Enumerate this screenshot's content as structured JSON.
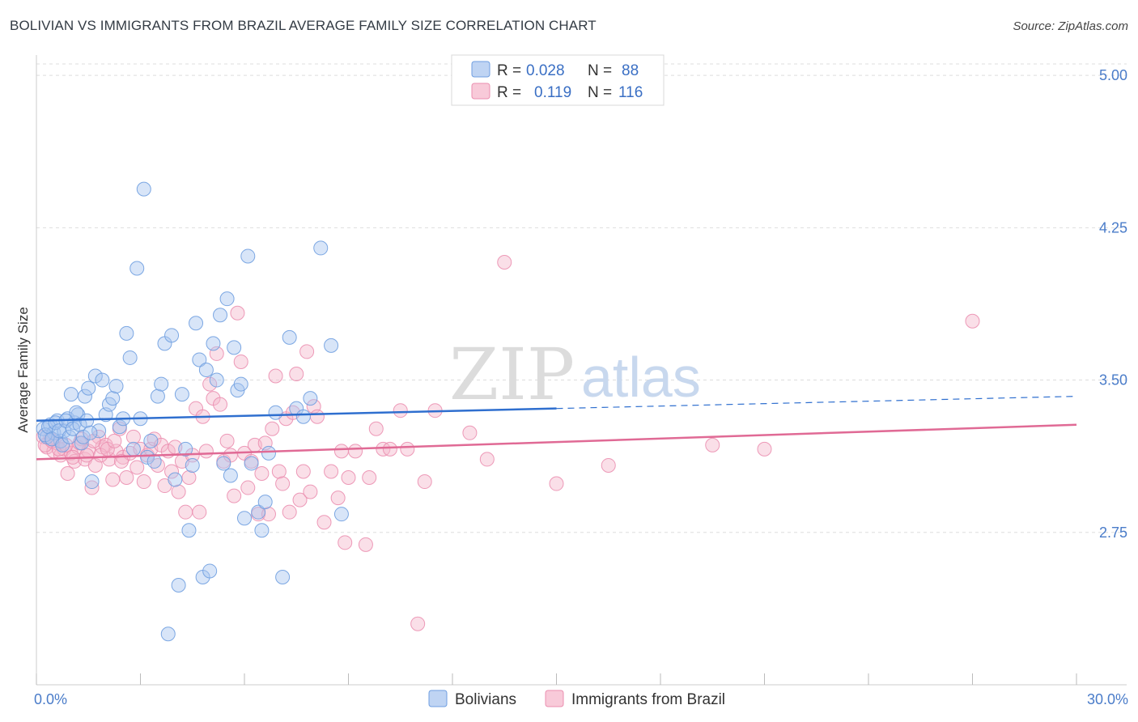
{
  "header": {
    "title": "BOLIVIAN VS IMMIGRANTS FROM BRAZIL AVERAGE FAMILY SIZE CORRELATION CHART",
    "source": "Source: ZipAtlas.com"
  },
  "watermark": {
    "zip": "ZIP",
    "atlas": "atlas"
  },
  "colors": {
    "bolivians_fill": "#a9c6ef",
    "bolivians_stroke": "#6f9ee0",
    "bolivians_line": "#2f6fcf",
    "brazil_fill": "#f5b8cc",
    "brazil_stroke": "#eb8fb0",
    "brazil_line": "#e06a95",
    "tick_label": "#4a7cc9",
    "grid": "#dddddd"
  },
  "stats": {
    "r_label": "R =",
    "n_label": "N =",
    "bolivians": {
      "r": "0.028",
      "n": "88"
    },
    "brazil": {
      "r": "0.119",
      "n": "116"
    }
  },
  "chart_data": {
    "type": "scatter",
    "title": "BOLIVIAN VS IMMIGRANTS FROM BRAZIL AVERAGE FAMILY SIZE CORRELATION CHART",
    "xlabel": "",
    "ylabel": "Average Family Size",
    "xlim": [
      0,
      30
    ],
    "ylim": [
      2.0,
      5.1
    ],
    "x_tick_labels": [
      "0.0%",
      "30.0%"
    ],
    "y_ticks": [
      2.75,
      3.5,
      4.25,
      5.0
    ],
    "y_tick_labels": [
      "2.75",
      "3.50",
      "4.25",
      "5.00"
    ],
    "grid": true,
    "legend_position": "bottom-center",
    "series": [
      {
        "name": "Bolivians",
        "r": 0.028,
        "n": 88,
        "trend": {
          "x0": 0,
          "y0": 3.3,
          "x1": 15,
          "y1": 3.36,
          "dashed_to_x": 30,
          "dashed_to_y": 3.42
        },
        "points": [
          [
            0.2,
            3.26
          ],
          [
            0.3,
            3.22
          ],
          [
            0.4,
            3.28
          ],
          [
            0.5,
            3.24
          ],
          [
            0.6,
            3.3
          ],
          [
            0.7,
            3.2
          ],
          [
            0.8,
            3.25
          ],
          [
            0.9,
            3.31
          ],
          [
            1.0,
            3.43
          ],
          [
            1.1,
            3.29
          ],
          [
            1.2,
            3.33
          ],
          [
            1.3,
            3.19
          ],
          [
            1.4,
            3.42
          ],
          [
            1.5,
            3.46
          ],
          [
            1.6,
            3.0
          ],
          [
            1.7,
            3.52
          ],
          [
            1.8,
            3.25
          ],
          [
            1.9,
            3.5
          ],
          [
            2.0,
            3.33
          ],
          [
            2.1,
            3.38
          ],
          [
            2.2,
            3.41
          ],
          [
            2.3,
            3.47
          ],
          [
            2.4,
            3.27
          ],
          [
            2.5,
            3.31
          ],
          [
            2.6,
            3.73
          ],
          [
            2.7,
            3.61
          ],
          [
            2.8,
            3.16
          ],
          [
            2.9,
            4.05
          ],
          [
            3.0,
            3.31
          ],
          [
            3.1,
            4.44
          ],
          [
            3.2,
            3.12
          ],
          [
            3.3,
            3.2
          ],
          [
            3.4,
            3.1
          ],
          [
            3.5,
            3.42
          ],
          [
            3.6,
            3.48
          ],
          [
            3.7,
            3.68
          ],
          [
            3.8,
            2.25
          ],
          [
            3.9,
            3.72
          ],
          [
            4.0,
            3.01
          ],
          [
            4.1,
            2.49
          ],
          [
            4.2,
            3.43
          ],
          [
            4.3,
            3.16
          ],
          [
            4.4,
            2.76
          ],
          [
            4.5,
            3.08
          ],
          [
            4.6,
            3.78
          ],
          [
            4.7,
            3.6
          ],
          [
            4.8,
            2.53
          ],
          [
            4.9,
            3.55
          ],
          [
            5.0,
            2.56
          ],
          [
            5.1,
            3.68
          ],
          [
            5.2,
            3.5
          ],
          [
            5.3,
            3.82
          ],
          [
            5.4,
            3.09
          ],
          [
            5.5,
            3.9
          ],
          [
            5.6,
            3.03
          ],
          [
            5.7,
            3.66
          ],
          [
            5.8,
            3.45
          ],
          [
            5.9,
            3.48
          ],
          [
            6.0,
            2.82
          ],
          [
            6.1,
            4.11
          ],
          [
            6.2,
            3.09
          ],
          [
            6.4,
            2.85
          ],
          [
            6.5,
            2.76
          ],
          [
            6.6,
            2.9
          ],
          [
            6.7,
            3.14
          ],
          [
            6.9,
            3.34
          ],
          [
            7.1,
            2.53
          ],
          [
            7.3,
            3.71
          ],
          [
            7.5,
            3.36
          ],
          [
            7.7,
            3.32
          ],
          [
            7.9,
            3.41
          ],
          [
            8.2,
            4.15
          ],
          [
            8.5,
            3.67
          ],
          [
            8.8,
            2.84
          ],
          [
            0.25,
            3.23
          ],
          [
            0.35,
            3.27
          ],
          [
            0.45,
            3.21
          ],
          [
            0.55,
            3.29
          ],
          [
            0.65,
            3.25
          ],
          [
            0.75,
            3.18
          ],
          [
            0.85,
            3.3
          ],
          [
            0.95,
            3.22
          ],
          [
            1.05,
            3.26
          ],
          [
            1.15,
            3.34
          ],
          [
            1.25,
            3.28
          ],
          [
            1.35,
            3.22
          ],
          [
            1.45,
            3.3
          ],
          [
            1.55,
            3.24
          ]
        ]
      },
      {
        "name": "Immigrants from Brazil",
        "r": 0.119,
        "n": 116,
        "trend": {
          "x0": 0,
          "y0": 3.11,
          "x1": 30,
          "y1": 3.28
        },
        "points": [
          [
            0.2,
            3.22
          ],
          [
            0.3,
            3.17
          ],
          [
            0.4,
            3.21
          ],
          [
            0.5,
            3.15
          ],
          [
            0.6,
            3.19
          ],
          [
            0.7,
            3.13
          ],
          [
            0.8,
            3.16
          ],
          [
            0.9,
            3.04
          ],
          [
            1.0,
            3.14
          ],
          [
            1.1,
            3.1
          ],
          [
            1.2,
            3.17
          ],
          [
            1.3,
            3.21
          ],
          [
            1.4,
            3.11
          ],
          [
            1.5,
            3.15
          ],
          [
            1.6,
            2.97
          ],
          [
            1.7,
            3.08
          ],
          [
            1.8,
            3.22
          ],
          [
            1.9,
            3.17
          ],
          [
            2.0,
            3.18
          ],
          [
            2.1,
            3.11
          ],
          [
            2.2,
            3.01
          ],
          [
            2.3,
            3.15
          ],
          [
            2.4,
            3.26
          ],
          [
            2.5,
            3.12
          ],
          [
            2.6,
            3.02
          ],
          [
            2.7,
            3.14
          ],
          [
            2.8,
            3.22
          ],
          [
            2.9,
            3.07
          ],
          [
            3.0,
            3.16
          ],
          [
            3.1,
            3.0
          ],
          [
            3.2,
            3.13
          ],
          [
            3.3,
            3.16
          ],
          [
            3.4,
            3.21
          ],
          [
            3.5,
            3.08
          ],
          [
            3.6,
            3.18
          ],
          [
            3.7,
            2.98
          ],
          [
            3.8,
            3.15
          ],
          [
            3.9,
            3.05
          ],
          [
            4.0,
            3.17
          ],
          [
            4.1,
            2.95
          ],
          [
            4.2,
            3.1
          ],
          [
            4.3,
            2.85
          ],
          [
            4.4,
            3.02
          ],
          [
            4.5,
            3.13
          ],
          [
            4.6,
            3.36
          ],
          [
            4.7,
            2.85
          ],
          [
            4.8,
            3.32
          ],
          [
            4.9,
            3.15
          ],
          [
            5.0,
            3.48
          ],
          [
            5.1,
            3.41
          ],
          [
            5.2,
            3.63
          ],
          [
            5.3,
            3.38
          ],
          [
            5.4,
            3.1
          ],
          [
            5.5,
            3.2
          ],
          [
            5.6,
            3.13
          ],
          [
            5.7,
            2.93
          ],
          [
            5.8,
            3.83
          ],
          [
            5.9,
            3.59
          ],
          [
            6.0,
            3.14
          ],
          [
            6.1,
            2.97
          ],
          [
            6.2,
            3.1
          ],
          [
            6.3,
            3.18
          ],
          [
            6.4,
            2.84
          ],
          [
            6.5,
            3.04
          ],
          [
            6.6,
            3.19
          ],
          [
            6.7,
            2.84
          ],
          [
            6.8,
            3.26
          ],
          [
            6.9,
            3.52
          ],
          [
            7.0,
            3.05
          ],
          [
            7.1,
            2.99
          ],
          [
            7.2,
            3.31
          ],
          [
            7.3,
            2.85
          ],
          [
            7.4,
            3.34
          ],
          [
            7.5,
            3.53
          ],
          [
            7.6,
            2.91
          ],
          [
            7.7,
            3.05
          ],
          [
            7.8,
            3.64
          ],
          [
            7.9,
            2.95
          ],
          [
            8.0,
            3.37
          ],
          [
            8.1,
            3.32
          ],
          [
            8.3,
            2.8
          ],
          [
            8.5,
            3.05
          ],
          [
            8.7,
            2.92
          ],
          [
            8.8,
            3.15
          ],
          [
            8.9,
            2.7
          ],
          [
            9.0,
            3.02
          ],
          [
            9.2,
            3.15
          ],
          [
            9.5,
            2.69
          ],
          [
            9.6,
            3.02
          ],
          [
            9.8,
            3.26
          ],
          [
            10.0,
            3.16
          ],
          [
            10.2,
            3.16
          ],
          [
            10.5,
            3.35
          ],
          [
            10.7,
            3.16
          ],
          [
            11.0,
            2.3
          ],
          [
            11.2,
            3.0
          ],
          [
            11.5,
            3.35
          ],
          [
            12.5,
            3.24
          ],
          [
            13.0,
            3.11
          ],
          [
            13.5,
            4.08
          ],
          [
            15.0,
            2.99
          ],
          [
            16.5,
            3.08
          ],
          [
            19.5,
            3.18
          ],
          [
            21.0,
            3.16
          ],
          [
            27.0,
            3.79
          ],
          [
            0.25,
            3.18
          ],
          [
            0.45,
            3.2
          ],
          [
            0.65,
            3.16
          ],
          [
            0.85,
            3.18
          ],
          [
            1.05,
            3.12
          ],
          [
            1.25,
            3.19
          ],
          [
            1.45,
            3.13
          ],
          [
            1.65,
            3.2
          ],
          [
            1.85,
            3.13
          ],
          [
            2.05,
            3.16
          ],
          [
            2.25,
            3.2
          ],
          [
            2.45,
            3.1
          ]
        ]
      }
    ]
  },
  "axis_labels": {
    "x_min": "0.0%",
    "x_max": "30.0%"
  },
  "legend": {
    "series1": "Bolivians",
    "series2": "Immigrants from Brazil"
  }
}
